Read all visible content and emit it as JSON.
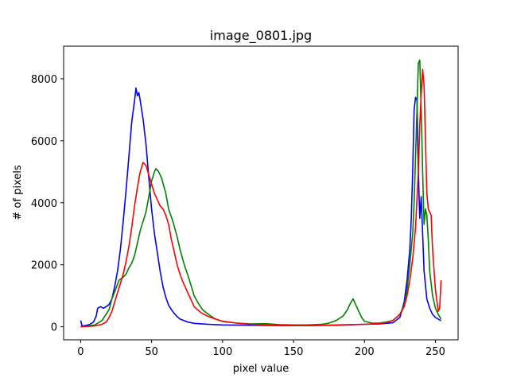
{
  "chart_data": {
    "type": "line",
    "title": "image_0801.jpg",
    "xlabel": "pixel value",
    "ylabel": "# of pixels",
    "xlim": [
      -12,
      266
    ],
    "ylim": [
      -420,
      9050
    ],
    "xticks": [
      0,
      50,
      100,
      150,
      200,
      250
    ],
    "yticks": [
      0,
      2000,
      4000,
      6000,
      8000
    ],
    "grid": false,
    "legend": "none",
    "series": [
      {
        "color": "#0000ff",
        "points": [
          [
            0,
            200
          ],
          [
            1,
            30
          ],
          [
            3,
            40
          ],
          [
            6,
            70
          ],
          [
            9,
            150
          ],
          [
            11,
            350
          ],
          [
            12,
            600
          ],
          [
            14,
            650
          ],
          [
            16,
            600
          ],
          [
            18,
            650
          ],
          [
            20,
            720
          ],
          [
            22,
            900
          ],
          [
            24,
            1300
          ],
          [
            26,
            1800
          ],
          [
            28,
            2500
          ],
          [
            30,
            3400
          ],
          [
            32,
            4400
          ],
          [
            34,
            5500
          ],
          [
            36,
            6600
          ],
          [
            38,
            7300
          ],
          [
            39,
            7700
          ],
          [
            40,
            7450
          ],
          [
            41,
            7550
          ],
          [
            42,
            7300
          ],
          [
            44,
            6700
          ],
          [
            46,
            5900
          ],
          [
            48,
            4800
          ],
          [
            50,
            3800
          ],
          [
            52,
            3000
          ],
          [
            54,
            2400
          ],
          [
            56,
            1800
          ],
          [
            58,
            1300
          ],
          [
            60,
            950
          ],
          [
            62,
            700
          ],
          [
            64,
            550
          ],
          [
            66,
            430
          ],
          [
            68,
            330
          ],
          [
            70,
            250
          ],
          [
            75,
            160
          ],
          [
            80,
            110
          ],
          [
            90,
            80
          ],
          [
            100,
            60
          ],
          [
            120,
            50
          ],
          [
            140,
            40
          ],
          [
            160,
            40
          ],
          [
            180,
            50
          ],
          [
            200,
            80
          ],
          [
            210,
            90
          ],
          [
            220,
            130
          ],
          [
            225,
            300
          ],
          [
            228,
            800
          ],
          [
            230,
            1500
          ],
          [
            232,
            2500
          ],
          [
            233,
            3500
          ],
          [
            234,
            5000
          ],
          [
            235,
            7000
          ],
          [
            236,
            7400
          ],
          [
            237,
            7300
          ],
          [
            238,
            5000
          ],
          [
            239,
            3500
          ],
          [
            240,
            4200
          ],
          [
            241,
            3000
          ],
          [
            242,
            1800
          ],
          [
            244,
            900
          ],
          [
            246,
            600
          ],
          [
            248,
            400
          ],
          [
            250,
            300
          ],
          [
            252,
            250
          ],
          [
            254,
            200
          ]
        ]
      },
      {
        "color": "#008000",
        "points": [
          [
            0,
            10
          ],
          [
            5,
            30
          ],
          [
            10,
            60
          ],
          [
            15,
            200
          ],
          [
            20,
            550
          ],
          [
            22,
            900
          ],
          [
            25,
            1250
          ],
          [
            27,
            1500
          ],
          [
            30,
            1600
          ],
          [
            32,
            1700
          ],
          [
            34,
            1900
          ],
          [
            36,
            2050
          ],
          [
            38,
            2300
          ],
          [
            40,
            2700
          ],
          [
            42,
            3100
          ],
          [
            44,
            3400
          ],
          [
            46,
            3700
          ],
          [
            48,
            4200
          ],
          [
            50,
            4700
          ],
          [
            52,
            5000
          ],
          [
            53,
            5100
          ],
          [
            55,
            5000
          ],
          [
            57,
            4800
          ],
          [
            60,
            4300
          ],
          [
            62,
            3800
          ],
          [
            65,
            3400
          ],
          [
            68,
            2900
          ],
          [
            70,
            2500
          ],
          [
            73,
            2000
          ],
          [
            76,
            1600
          ],
          [
            78,
            1300
          ],
          [
            80,
            1000
          ],
          [
            83,
            750
          ],
          [
            86,
            550
          ],
          [
            90,
            400
          ],
          [
            95,
            250
          ],
          [
            100,
            170
          ],
          [
            110,
            120
          ],
          [
            120,
            90
          ],
          [
            130,
            100
          ],
          [
            140,
            70
          ],
          [
            150,
            60
          ],
          [
            160,
            60
          ],
          [
            170,
            80
          ],
          [
            175,
            120
          ],
          [
            180,
            200
          ],
          [
            185,
            350
          ],
          [
            188,
            550
          ],
          [
            190,
            750
          ],
          [
            192,
            900
          ],
          [
            194,
            700
          ],
          [
            196,
            500
          ],
          [
            198,
            300
          ],
          [
            200,
            180
          ],
          [
            205,
            120
          ],
          [
            210,
            120
          ],
          [
            215,
            150
          ],
          [
            220,
            200
          ],
          [
            225,
            400
          ],
          [
            228,
            700
          ],
          [
            230,
            1200
          ],
          [
            232,
            2000
          ],
          [
            234,
            3000
          ],
          [
            235,
            4000
          ],
          [
            236,
            5500
          ],
          [
            237,
            7000
          ],
          [
            238,
            8500
          ],
          [
            239,
            8600
          ],
          [
            240,
            7000
          ],
          [
            241,
            5000
          ],
          [
            242,
            3300
          ],
          [
            243,
            3800
          ],
          [
            244,
            3600
          ],
          [
            245,
            2800
          ],
          [
            246,
            1800
          ],
          [
            248,
            1000
          ],
          [
            250,
            600
          ],
          [
            252,
            400
          ],
          [
            254,
            250
          ]
        ]
      },
      {
        "color": "#ff0000",
        "points": [
          [
            0,
            0
          ],
          [
            5,
            10
          ],
          [
            10,
            30
          ],
          [
            15,
            80
          ],
          [
            18,
            150
          ],
          [
            20,
            300
          ],
          [
            22,
            500
          ],
          [
            24,
            800
          ],
          [
            26,
            1100
          ],
          [
            28,
            1400
          ],
          [
            30,
            1700
          ],
          [
            32,
            2100
          ],
          [
            34,
            2600
          ],
          [
            36,
            3200
          ],
          [
            38,
            3900
          ],
          [
            40,
            4500
          ],
          [
            42,
            5000
          ],
          [
            44,
            5300
          ],
          [
            46,
            5200
          ],
          [
            48,
            4900
          ],
          [
            50,
            4600
          ],
          [
            52,
            4300
          ],
          [
            54,
            4100
          ],
          [
            56,
            3900
          ],
          [
            58,
            3800
          ],
          [
            60,
            3600
          ],
          [
            62,
            3300
          ],
          [
            64,
            2800
          ],
          [
            66,
            2400
          ],
          [
            68,
            2000
          ],
          [
            70,
            1700
          ],
          [
            72,
            1450
          ],
          [
            75,
            1150
          ],
          [
            78,
            850
          ],
          [
            80,
            650
          ],
          [
            85,
            450
          ],
          [
            90,
            330
          ],
          [
            95,
            250
          ],
          [
            100,
            180
          ],
          [
            110,
            120
          ],
          [
            120,
            80
          ],
          [
            130,
            60
          ],
          [
            140,
            50
          ],
          [
            150,
            40
          ],
          [
            160,
            40
          ],
          [
            170,
            50
          ],
          [
            180,
            60
          ],
          [
            190,
            70
          ],
          [
            200,
            80
          ],
          [
            210,
            100
          ],
          [
            215,
            130
          ],
          [
            220,
            200
          ],
          [
            225,
            400
          ],
          [
            228,
            650
          ],
          [
            230,
            1000
          ],
          [
            232,
            1500
          ],
          [
            234,
            2200
          ],
          [
            236,
            3200
          ],
          [
            238,
            5000
          ],
          [
            239,
            6500
          ],
          [
            240,
            7500
          ],
          [
            241,
            8300
          ],
          [
            242,
            7800
          ],
          [
            243,
            6000
          ],
          [
            244,
            4300
          ],
          [
            245,
            3800
          ],
          [
            246,
            3700
          ],
          [
            247,
            3600
          ],
          [
            248,
            2500
          ],
          [
            250,
            1200
          ],
          [
            252,
            500
          ],
          [
            253,
            600
          ],
          [
            254,
            1500
          ]
        ]
      }
    ]
  }
}
